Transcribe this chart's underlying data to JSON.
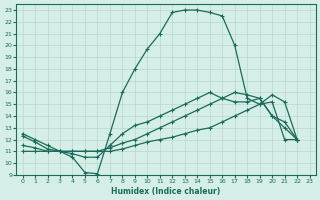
{
  "xlabel": "Humidex (Indice chaleur)",
  "ylabel": "",
  "xlim": [
    -0.5,
    23.5
  ],
  "ylim": [
    9,
    23.5
  ],
  "yticks": [
    9,
    10,
    11,
    12,
    13,
    14,
    15,
    16,
    17,
    18,
    19,
    20,
    21,
    22,
    23
  ],
  "xticks": [
    0,
    1,
    2,
    3,
    4,
    5,
    6,
    7,
    8,
    9,
    10,
    11,
    12,
    13,
    14,
    15,
    16,
    17,
    18,
    19,
    20,
    21,
    22,
    23
  ],
  "background_color": "#d6eee8",
  "grid_color": "#b8d8cc",
  "line_color": "#1a6b5a",
  "line1_x": [
    0,
    1,
    2,
    3,
    4,
    5,
    6,
    7,
    8,
    9,
    10,
    11,
    12,
    13,
    14,
    15,
    16,
    17,
    18,
    19,
    20,
    21,
    22
  ],
  "line1_y": [
    12.5,
    12.0,
    11.5,
    11.0,
    10.5,
    9.2,
    9.1,
    12.5,
    16.0,
    18.0,
    19.7,
    21.0,
    22.8,
    23.0,
    23.0,
    22.8,
    22.5,
    20.0,
    15.5,
    15.0,
    15.8,
    15.2,
    12.0
  ],
  "line2_x": [
    0,
    1,
    2,
    3,
    4,
    5,
    6,
    7,
    8,
    9,
    10,
    11,
    12,
    13,
    14,
    15,
    16,
    17,
    18,
    19,
    20,
    21,
    22
  ],
  "line2_y": [
    12.3,
    11.8,
    11.2,
    11.0,
    10.8,
    10.5,
    10.5,
    11.5,
    12.5,
    13.2,
    13.5,
    14.0,
    14.5,
    15.0,
    15.5,
    16.0,
    15.5,
    15.2,
    15.2,
    15.5,
    14.0,
    13.5,
    12.0
  ],
  "line3_x": [
    0,
    1,
    2,
    3,
    4,
    5,
    6,
    7,
    8,
    9,
    10,
    11,
    12,
    13,
    14,
    15,
    16,
    17,
    18,
    19,
    20,
    21,
    22
  ],
  "line3_y": [
    11.5,
    11.3,
    11.0,
    11.0,
    11.0,
    11.0,
    11.0,
    11.3,
    11.7,
    12.0,
    12.5,
    13.0,
    13.5,
    14.0,
    14.5,
    15.0,
    15.5,
    16.0,
    15.8,
    15.5,
    14.0,
    13.0,
    12.0
  ],
  "line4_x": [
    0,
    1,
    2,
    3,
    4,
    5,
    6,
    7,
    8,
    9,
    10,
    11,
    12,
    13,
    14,
    15,
    16,
    17,
    18,
    19,
    20,
    21,
    22
  ],
  "line4_y": [
    11.0,
    11.0,
    11.0,
    11.0,
    11.0,
    11.0,
    11.0,
    11.0,
    11.2,
    11.5,
    11.8,
    12.0,
    12.2,
    12.5,
    12.8,
    13.0,
    13.5,
    14.0,
    14.5,
    15.0,
    15.2,
    12.0,
    12.0
  ]
}
